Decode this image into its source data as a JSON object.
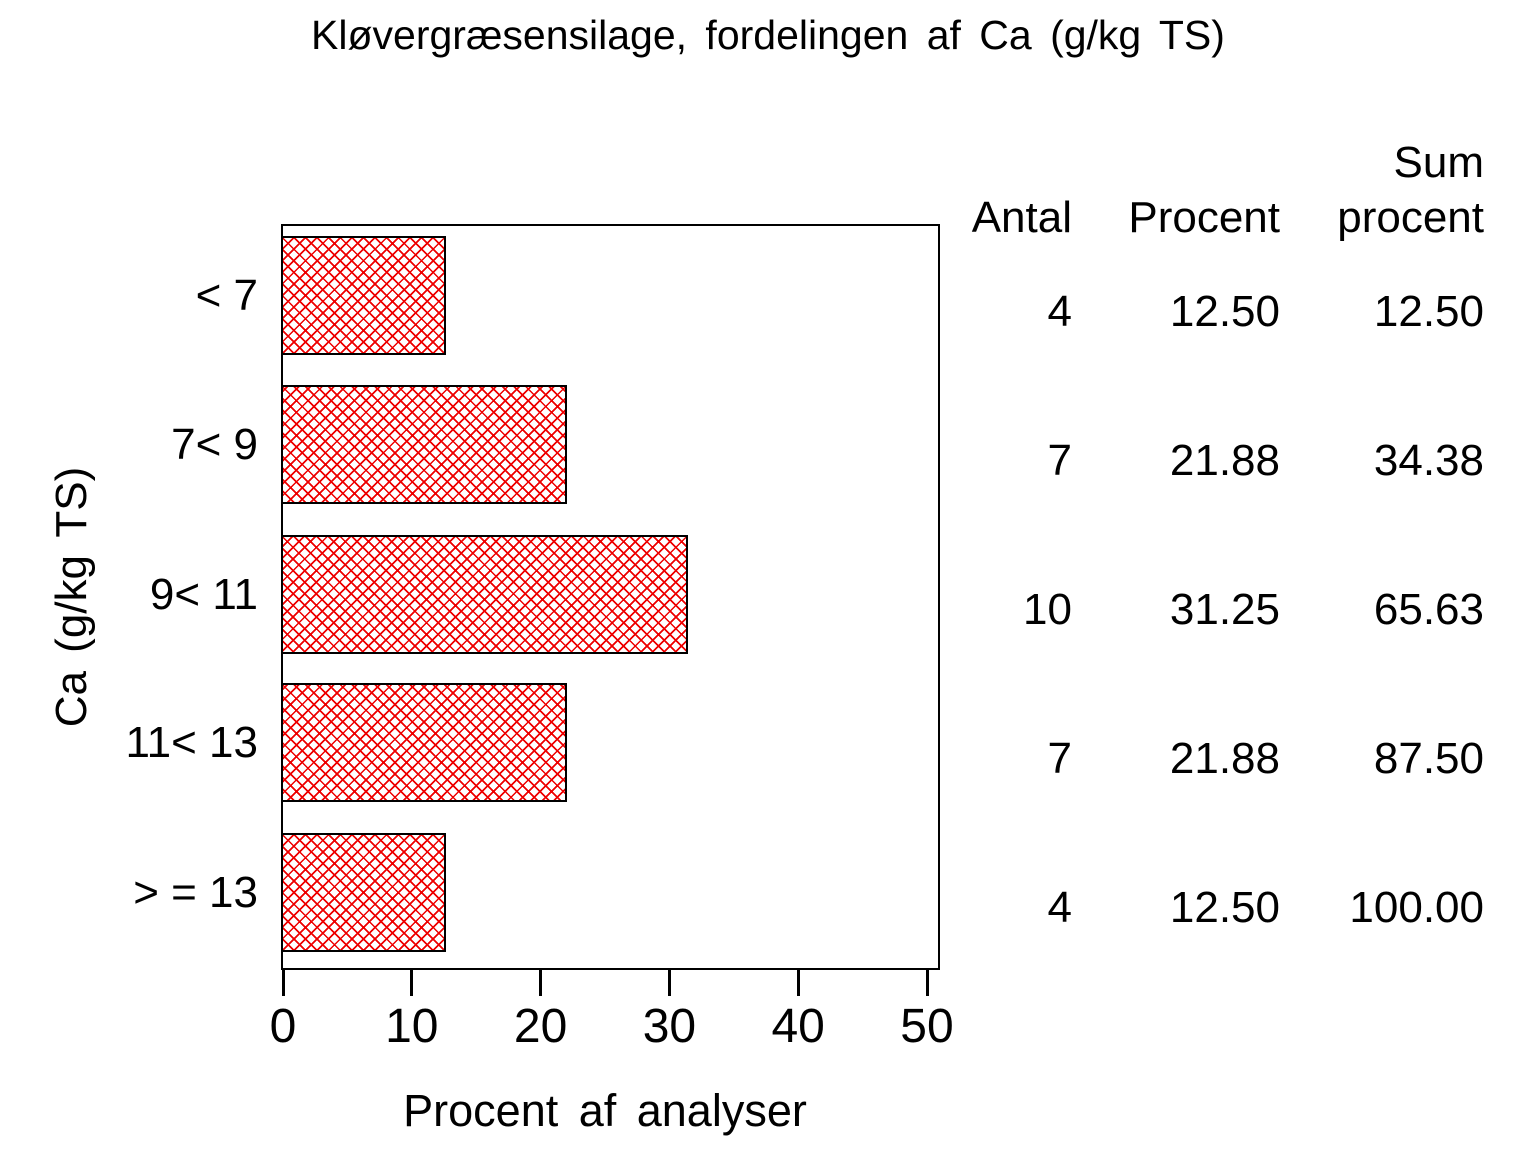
{
  "title": "Kløvergræsensilage, fordelingen af Ca (g/kg TS)",
  "chart_data": {
    "type": "bar",
    "orientation": "horizontal",
    "title": "Kløvergræsensilage, fordelingen af Ca (g/kg TS)",
    "categories": [
      "< 7",
      "7< 9",
      "9< 11",
      "11< 13",
      "> = 13"
    ],
    "values": [
      12.5,
      21.88,
      31.25,
      21.88,
      12.5
    ],
    "counts": [
      4,
      7,
      10,
      7,
      4
    ],
    "cum_percent": [
      12.5,
      34.38,
      65.63,
      87.5,
      100.0
    ],
    "xlabel": "Procent af analyser",
    "ylabel": "Ca (g/kg TS)",
    "xlim": [
      0,
      50
    ],
    "x_ticks": [
      0,
      10,
      20,
      30,
      40,
      50
    ],
    "x_tick_labels": [
      "0",
      "10",
      "20",
      "30",
      "40",
      "50"
    ],
    "grid": false,
    "legend": "none",
    "bar_style": "red diagonal crosshatch on white, black outline",
    "bar_color": "#ee0000",
    "frame_color": "#000000"
  },
  "table": {
    "headers": {
      "antal": "Antal",
      "procent": "Procent",
      "sum_line1": "Sum",
      "sum_line2": "procent"
    },
    "rows": [
      {
        "antal": "4",
        "procent": "12.50",
        "sum": "12.50"
      },
      {
        "antal": "7",
        "procent": "21.88",
        "sum": "34.38"
      },
      {
        "antal": "10",
        "procent": "31.25",
        "sum": "65.63"
      },
      {
        "antal": "7",
        "procent": "21.88",
        "sum": "87.50"
      },
      {
        "antal": "4",
        "procent": "12.50",
        "sum": "100.00"
      }
    ]
  }
}
